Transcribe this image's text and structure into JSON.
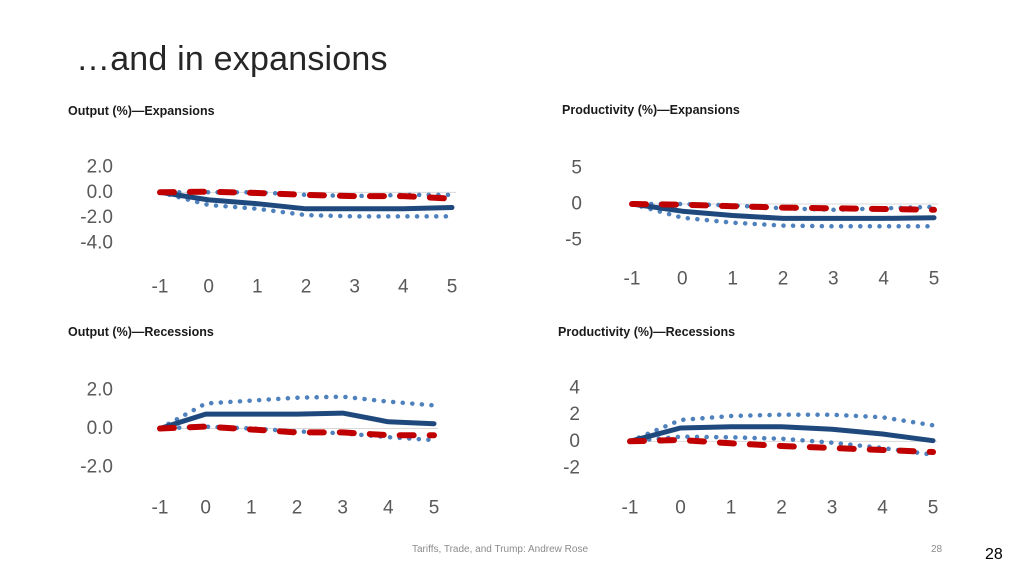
{
  "slide": {
    "title": "…and in expansions",
    "footer_text": "Tariffs, Trade, and Trump: Andrew Rose",
    "footer_page": "28",
    "page_number": "28"
  },
  "colors": {
    "estimate": "#1F497D",
    "confidence_band": "#4F81BD",
    "comparison": "#C00000",
    "zero_line": "#D9D9D9"
  },
  "chart_data": [
    {
      "id": "output-expansions",
      "type": "line",
      "title": "Output (%)—Expansions",
      "x": [
        -1,
        0,
        1,
        2,
        3,
        4,
        5
      ],
      "xlim": [
        -1,
        5
      ],
      "ylim": [
        -4,
        2
      ],
      "x_ticks": [
        "-1",
        "0",
        "1",
        "2",
        "3",
        "4",
        "5"
      ],
      "y_ticks": [
        2,
        0,
        -2,
        -4
      ],
      "y_tick_labels": [
        "2.0",
        "0.0",
        "-2.0",
        "-4.0"
      ],
      "series": [
        {
          "name": "estimate",
          "style": "solid",
          "values": [
            0,
            -0.6,
            -0.9,
            -1.3,
            -1.3,
            -1.3,
            -1.2
          ]
        },
        {
          "name": "upper band",
          "style": "dotted",
          "values": [
            0,
            0,
            0,
            -0.2,
            -0.3,
            -0.2,
            -0.2
          ]
        },
        {
          "name": "lower band",
          "style": "dotted",
          "values": [
            0,
            -1.0,
            -1.3,
            -1.8,
            -1.9,
            -1.9,
            -1.9
          ]
        },
        {
          "name": "comparison",
          "style": "dashed",
          "values": [
            0,
            0.05,
            -0.05,
            -0.2,
            -0.3,
            -0.3,
            -0.5
          ]
        }
      ]
    },
    {
      "id": "productivity-expansions",
      "type": "line",
      "title": "Productivity (%)—Expansions",
      "x": [
        -1,
        0,
        1,
        2,
        3,
        4,
        5
      ],
      "xlim": [
        -1,
        5
      ],
      "ylim": [
        -5,
        5
      ],
      "x_ticks": [
        "-1",
        "0",
        "1",
        "2",
        "3",
        "4",
        "5"
      ],
      "y_ticks": [
        5,
        0,
        -5
      ],
      "y_tick_labels": [
        "5",
        "0",
        "-5"
      ],
      "series": [
        {
          "name": "estimate",
          "style": "solid",
          "values": [
            0,
            -1.0,
            -1.6,
            -2.0,
            -2.0,
            -2.0,
            -1.9
          ]
        },
        {
          "name": "upper band",
          "style": "dotted",
          "values": [
            0,
            0,
            -0.2,
            -0.6,
            -0.8,
            -0.6,
            -0.4
          ]
        },
        {
          "name": "lower band",
          "style": "dotted",
          "values": [
            0,
            -1.9,
            -2.6,
            -3.0,
            -3.1,
            -3.1,
            -3.1
          ]
        },
        {
          "name": "comparison",
          "style": "dashed",
          "values": [
            0,
            -0.1,
            -0.3,
            -0.5,
            -0.6,
            -0.7,
            -0.8
          ]
        }
      ]
    },
    {
      "id": "output-recessions",
      "type": "line",
      "title": "Output (%)—Recessions",
      "x": [
        -1,
        0,
        1,
        2,
        3,
        4,
        5
      ],
      "xlim": [
        -1,
        5
      ],
      "ylim": [
        -2,
        2
      ],
      "x_ticks": [
        "-1",
        "0",
        "1",
        "2",
        "3",
        "4",
        "5"
      ],
      "y_ticks": [
        2,
        0,
        -2
      ],
      "y_tick_labels": [
        "2.0",
        "0.0",
        "-2.0"
      ],
      "series": [
        {
          "name": "estimate",
          "style": "solid",
          "values": [
            0,
            0.75,
            0.75,
            0.75,
            0.8,
            0.35,
            0.25
          ]
        },
        {
          "name": "upper band",
          "style": "dotted",
          "values": [
            0,
            1.3,
            1.45,
            1.6,
            1.65,
            1.4,
            1.2
          ]
        },
        {
          "name": "lower band",
          "style": "dotted",
          "values": [
            0,
            0.1,
            0,
            -0.15,
            -0.25,
            -0.45,
            -0.6
          ]
        },
        {
          "name": "comparison",
          "style": "dashed",
          "values": [
            0,
            0.1,
            -0.05,
            -0.2,
            -0.2,
            -0.35,
            -0.35
          ]
        }
      ]
    },
    {
      "id": "productivity-recessions",
      "type": "line",
      "title": "Productivity (%)—Recessions",
      "x": [
        -1,
        0,
        1,
        2,
        3,
        4,
        5
      ],
      "xlim": [
        -1,
        5
      ],
      "ylim": [
        -2,
        4
      ],
      "x_ticks": [
        "-1",
        "0",
        "1",
        "2",
        "3",
        "4",
        "5"
      ],
      "y_ticks": [
        4,
        2,
        0,
        -2
      ],
      "y_tick_labels": [
        "4",
        "2",
        "0",
        "-2"
      ],
      "series": [
        {
          "name": "estimate",
          "style": "solid",
          "values": [
            0,
            1.0,
            1.1,
            1.1,
            0.9,
            0.55,
            0.05
          ]
        },
        {
          "name": "upper band",
          "style": "dotted",
          "values": [
            0,
            1.6,
            1.9,
            2.0,
            2.0,
            1.8,
            1.2
          ]
        },
        {
          "name": "lower band",
          "style": "dotted",
          "values": [
            0,
            0.35,
            0.3,
            0.2,
            -0.1,
            -0.5,
            -1.0
          ]
        },
        {
          "name": "comparison",
          "style": "dashed",
          "values": [
            0,
            0.1,
            -0.15,
            -0.35,
            -0.5,
            -0.65,
            -0.8
          ]
        }
      ]
    }
  ]
}
